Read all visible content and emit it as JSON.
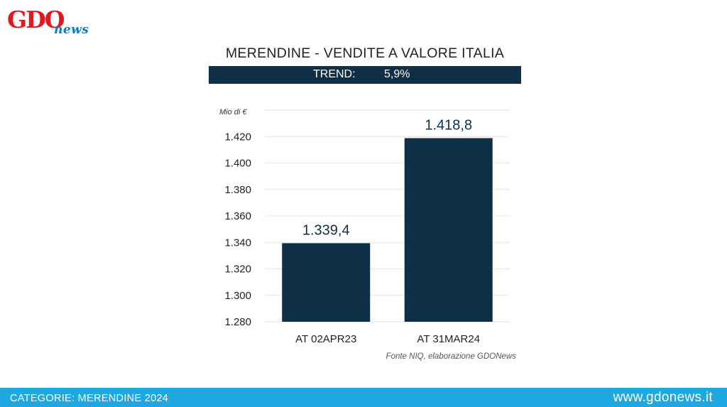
{
  "brand": {
    "logo_main": "GDO",
    "logo_sub": "news"
  },
  "header": {
    "title": "MERENDINE - VENDITE A VALORE ITALIA",
    "trend_label": "TREND:",
    "trend_value": "5,9%"
  },
  "footer": {
    "left": "CATEGORIE: MERENDINE 2024",
    "right": "www.gdonews.it"
  },
  "colors": {
    "bar": "#0e2f45",
    "accent_red": "#e3171f",
    "footer_blue": "#1ea7e1"
  },
  "chart_data": {
    "type": "bar",
    "title": "MERENDINE - VENDITE A VALORE ITALIA",
    "ylabel": "Mio di €",
    "categories": [
      "AT 02APR23",
      "AT 31MAR24"
    ],
    "values": [
      1339.4,
      1418.8
    ],
    "data_labels": [
      "1.339,4",
      "1.418,8"
    ],
    "ylim": [
      1280,
      1440
    ],
    "yticks": [
      1280,
      1300,
      1320,
      1340,
      1360,
      1380,
      1400,
      1420
    ],
    "ytick_labels": [
      "1.280",
      "1.300",
      "1.320",
      "1.340",
      "1.360",
      "1.380",
      "1.400",
      "1.420"
    ],
    "grid": true,
    "source": "Fonte NIQ, elaborazione GDONews"
  }
}
